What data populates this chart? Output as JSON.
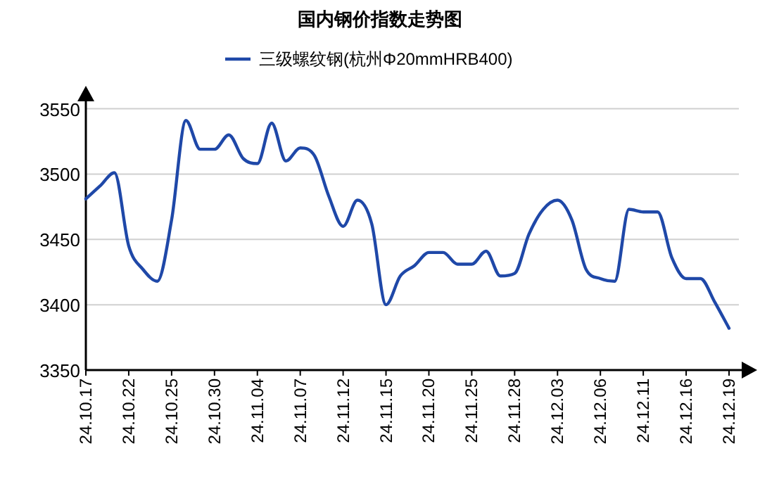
{
  "chart_data": {
    "type": "line",
    "title": "国内钢价指数走势图",
    "categories": [
      "24.10.17",
      null,
      null,
      "24.10.22",
      null,
      null,
      "24.10.25",
      null,
      null,
      "24.10.30",
      null,
      null,
      "24.11.04",
      null,
      null,
      "24.11.07",
      null,
      null,
      "24.11.12",
      null,
      null,
      "24.11.15",
      null,
      null,
      "24.11.20",
      null,
      null,
      "24.11.25",
      null,
      null,
      "24.11.28",
      null,
      null,
      "24.12.03",
      null,
      null,
      "24.12.06",
      null,
      null,
      "24.12.11",
      null,
      null,
      "24.12.16",
      null,
      null,
      "24.12.19"
    ],
    "series": [
      {
        "name": "三级螺纹钢(杭州Φ20mmHRB400)",
        "color": "#1f48a8",
        "values": [
          3481,
          3491,
          3501,
          3445,
          3427,
          3418,
          3465,
          3541,
          3519,
          3519,
          3530,
          3512,
          3508,
          3539,
          3510,
          3520,
          3514,
          3483,
          3460,
          3480,
          3462,
          3400,
          3422,
          3430,
          3440,
          3440,
          3431,
          3431,
          3441,
          3422,
          3424,
          3454,
          3473,
          3480,
          3465,
          3427,
          3420,
          3418,
          3473,
          3471,
          3471,
          3436,
          3420,
          3420,
          3402,
          3382
        ]
      }
    ],
    "ylim": [
      3350,
      3560
    ],
    "yticks": [
      3350,
      3400,
      3450,
      3500,
      3550
    ],
    "grid": "y",
    "legend": "top",
    "marker": "none",
    "line_style": "solid"
  }
}
